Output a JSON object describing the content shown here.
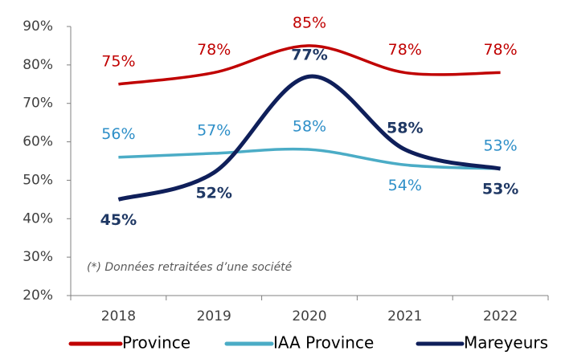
{
  "chart_data": {
    "type": "line",
    "annotation": "(*) Données retraitées d’une société",
    "categories": [
      "2018",
      "2019",
      "2020",
      "2021",
      "2022"
    ],
    "series": [
      {
        "name": "Province",
        "color": "#c00000",
        "values": [
          75,
          78,
          85,
          78,
          78
        ],
        "value_labels": [
          "75%",
          "78%",
          "85%",
          "78%",
          "78%"
        ]
      },
      {
        "name": "IAA Province",
        "color": "#4bacc6",
        "values": [
          56,
          57,
          58,
          54,
          53
        ],
        "value_labels": [
          "56%",
          "57%",
          "58%",
          "54%",
          "53%"
        ]
      },
      {
        "name": "Mareyeurs",
        "color": "#0f1f5a",
        "values": [
          45,
          52,
          77,
          58,
          53
        ],
        "value_labels": [
          "45%",
          "52%",
          "77%",
          "58%",
          "53%"
        ]
      }
    ],
    "ylim": [
      20,
      90
    ],
    "yticks": [
      {
        "value": 20,
        "label": "20%"
      },
      {
        "value": 30,
        "label": "30%"
      },
      {
        "value": 40,
        "label": "40%"
      },
      {
        "value": 50,
        "label": "50%"
      },
      {
        "value": 60,
        "label": "60%"
      },
      {
        "value": 70,
        "label": "70%"
      },
      {
        "value": 80,
        "label": "80%"
      },
      {
        "value": 90,
        "label": "90%"
      }
    ],
    "grid": false,
    "legend": "bottom"
  }
}
